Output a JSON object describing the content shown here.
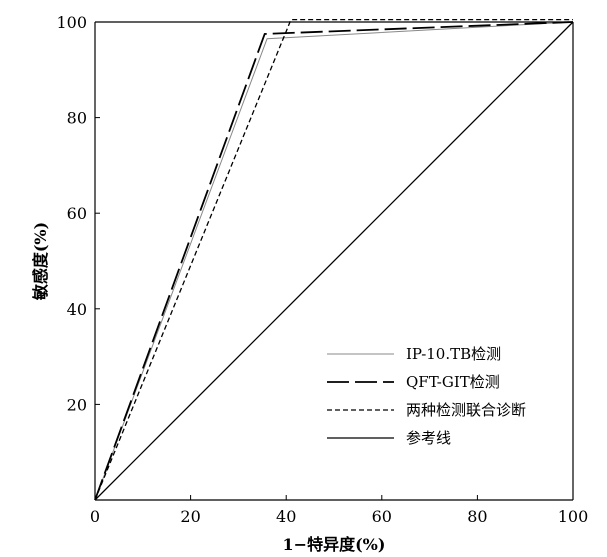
{
  "chart_data": {
    "type": "line",
    "title": "",
    "xlabel": "1−特异度(%)",
    "ylabel": "敏感度(%)",
    "xlim": [
      0,
      100
    ],
    "ylim": [
      0,
      100
    ],
    "x_ticks": [
      "0",
      "20",
      "40",
      "60",
      "80",
      "100"
    ],
    "y_ticks": [
      "20",
      "40",
      "60",
      "80",
      "100"
    ],
    "grid": false,
    "legend_position": "bottom-right",
    "series": [
      {
        "name": "IP-10.TB检测",
        "style": "solid-thin",
        "color": "#888888",
        "x": [
          0,
          36,
          100
        ],
        "y": [
          0,
          96.5,
          100
        ]
      },
      {
        "name": "QFT-GIT检测",
        "style": "long-dash",
        "color": "#000000",
        "x": [
          0,
          35.5,
          100
        ],
        "y": [
          0,
          97.5,
          100
        ]
      },
      {
        "name": "两种检测联合诊断",
        "style": "short-dash",
        "color": "#000000",
        "x": [
          0,
          41,
          100
        ],
        "y": [
          0,
          100.5,
          100.5
        ]
      },
      {
        "name": "参考线",
        "style": "solid",
        "color": "#000000",
        "x": [
          0,
          100
        ],
        "y": [
          0,
          100
        ]
      }
    ]
  }
}
